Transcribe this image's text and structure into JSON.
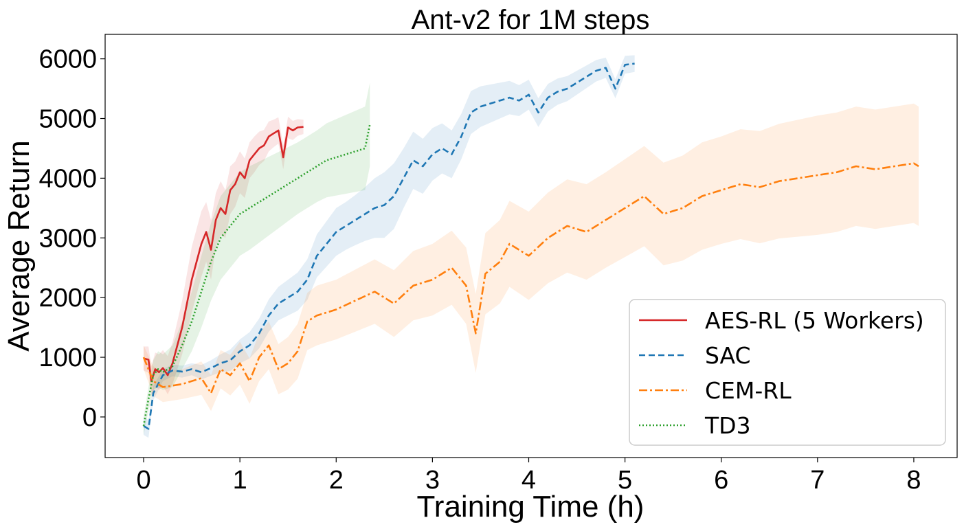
{
  "chart_data": {
    "type": "line",
    "title": "Ant-v2  for 1M steps",
    "xlabel": "Training Time (h)",
    "ylabel": "Average Return",
    "xlim": [
      -0.4,
      8.45
    ],
    "ylim": [
      -680,
      6410
    ],
    "xticks": [
      0,
      1,
      2,
      3,
      4,
      5,
      6,
      7,
      8
    ],
    "yticks": [
      0,
      1000,
      2000,
      3000,
      4000,
      5000,
      6000
    ],
    "grid": false,
    "legend_position": "lower-right",
    "series": [
      {
        "name": "AES-RL (5 Workers)",
        "color": "#d62728",
        "style": "solid",
        "x": [
          0.0,
          0.05,
          0.08,
          0.12,
          0.16,
          0.2,
          0.25,
          0.3,
          0.35,
          0.4,
          0.45,
          0.5,
          0.55,
          0.6,
          0.65,
          0.7,
          0.75,
          0.8,
          0.85,
          0.9,
          0.95,
          1.0,
          1.05,
          1.1,
          1.15,
          1.2,
          1.25,
          1.3,
          1.35,
          1.4,
          1.45,
          1.5,
          1.55,
          1.6,
          1.66
        ],
        "y": [
          980,
          960,
          600,
          800,
          750,
          820,
          700,
          900,
          1200,
          1500,
          1900,
          2300,
          2600,
          2900,
          3100,
          2800,
          3300,
          3500,
          3400,
          3800,
          3900,
          4100,
          4000,
          4300,
          4400,
          4500,
          4550,
          4700,
          4750,
          4800,
          4350,
          4850,
          4800,
          4850,
          4860
        ],
        "band": [
          200,
          220,
          250,
          280,
          300,
          300,
          320,
          350,
          400,
          450,
          500,
          550,
          550,
          550,
          500,
          500,
          450,
          450,
          400,
          400,
          380,
          350,
          330,
          300,
          300,
          280,
          260,
          250,
          230,
          220,
          200,
          180,
          160,
          140,
          120
        ]
      },
      {
        "name": "SAC",
        "color": "#1f77b4",
        "style": "dashed",
        "x": [
          0.0,
          0.05,
          0.1,
          0.2,
          0.3,
          0.4,
          0.5,
          0.6,
          0.7,
          0.8,
          0.9,
          1.0,
          1.1,
          1.2,
          1.3,
          1.4,
          1.5,
          1.6,
          1.7,
          1.8,
          1.9,
          2.0,
          2.1,
          2.2,
          2.3,
          2.4,
          2.5,
          2.6,
          2.7,
          2.8,
          2.9,
          3.0,
          3.1,
          3.2,
          3.3,
          3.4,
          3.5,
          3.6,
          3.7,
          3.8,
          3.9,
          4.0,
          4.1,
          4.2,
          4.3,
          4.4,
          4.5,
          4.6,
          4.7,
          4.8,
          4.9,
          5.0,
          5.1
        ],
        "y": [
          -150,
          -200,
          400,
          700,
          780,
          760,
          800,
          750,
          820,
          900,
          950,
          1100,
          1200,
          1400,
          1700,
          1900,
          2000,
          2100,
          2300,
          2700,
          2900,
          3100,
          3200,
          3300,
          3400,
          3500,
          3550,
          3700,
          4000,
          4300,
          4200,
          4400,
          4500,
          4400,
          4700,
          5100,
          5200,
          5250,
          5300,
          5350,
          5300,
          5400,
          5100,
          5350,
          5450,
          5500,
          5600,
          5700,
          5800,
          5850,
          5500,
          5900,
          5920
        ],
        "band": [
          150,
          150,
          120,
          100,
          100,
          100,
          100,
          120,
          130,
          150,
          180,
          200,
          220,
          250,
          270,
          280,
          300,
          320,
          340,
          360,
          380,
          400,
          400,
          420,
          450,
          500,
          550,
          550,
          500,
          480,
          460,
          440,
          420,
          400,
          380,
          360,
          340,
          320,
          300,
          280,
          260,
          250,
          240,
          230,
          220,
          210,
          200,
          190,
          180,
          170,
          160,
          150,
          140
        ]
      },
      {
        "name": "CEM-RL",
        "color": "#ff7f0e",
        "style": "dashdot",
        "x": [
          0.0,
          0.1,
          0.2,
          0.4,
          0.6,
          0.7,
          0.8,
          0.9,
          1.0,
          1.1,
          1.2,
          1.3,
          1.4,
          1.5,
          1.6,
          1.7,
          1.8,
          1.9,
          2.0,
          2.2,
          2.4,
          2.6,
          2.8,
          3.0,
          3.2,
          3.35,
          3.45,
          3.55,
          3.7,
          3.8,
          4.0,
          4.2,
          4.4,
          4.6,
          4.8,
          5.0,
          5.2,
          5.4,
          5.6,
          5.8,
          6.0,
          6.2,
          6.4,
          6.6,
          6.8,
          7.0,
          7.2,
          7.4,
          7.6,
          7.8,
          8.0,
          8.05
        ],
        "y": [
          1000,
          600,
          500,
          550,
          650,
          400,
          800,
          700,
          900,
          600,
          1000,
          1200,
          800,
          900,
          1100,
          1600,
          1700,
          1750,
          1800,
          1950,
          2100,
          1900,
          2200,
          2300,
          2500,
          2200,
          1400,
          2400,
          2600,
          2900,
          2700,
          3000,
          3200,
          3100,
          3300,
          3500,
          3700,
          3400,
          3500,
          3700,
          3800,
          3900,
          3850,
          3950,
          4000,
          4050,
          4100,
          4200,
          4150,
          4200,
          4250,
          4200
        ],
        "band": [
          200,
          250,
          250,
          250,
          280,
          300,
          320,
          340,
          360,
          380,
          400,
          400,
          420,
          440,
          460,
          480,
          500,
          500,
          500,
          520,
          540,
          560,
          580,
          600,
          620,
          640,
          660,
          680,
          700,
          720,
          740,
          760,
          780,
          800,
          800,
          820,
          840,
          860,
          880,
          900,
          900,
          920,
          940,
          960,
          980,
          1000,
          1000,
          1000,
          1000,
          1000,
          1000,
          1000
        ]
      },
      {
        "name": "TD3",
        "color": "#2ca02c",
        "style": "dotted",
        "x": [
          0.0,
          0.05,
          0.1,
          0.15,
          0.2,
          0.3,
          0.4,
          0.5,
          0.6,
          0.7,
          0.8,
          0.9,
          1.0,
          1.1,
          1.2,
          1.3,
          1.4,
          1.5,
          1.6,
          1.7,
          1.8,
          1.9,
          2.0,
          2.1,
          2.2,
          2.3,
          2.35
        ],
        "y": [
          -150,
          300,
          700,
          800,
          750,
          850,
          1200,
          1600,
          2100,
          2600,
          3000,
          3200,
          3400,
          3500,
          3600,
          3700,
          3800,
          3900,
          4000,
          4100,
          4200,
          4300,
          4350,
          4400,
          4450,
          4500,
          4900
        ],
        "band": [
          150,
          200,
          250,
          300,
          300,
          350,
          400,
          500,
          600,
          650,
          700,
          700,
          700,
          700,
          680,
          660,
          640,
          620,
          600,
          600,
          600,
          620,
          640,
          660,
          680,
          700,
          700
        ]
      }
    ]
  }
}
